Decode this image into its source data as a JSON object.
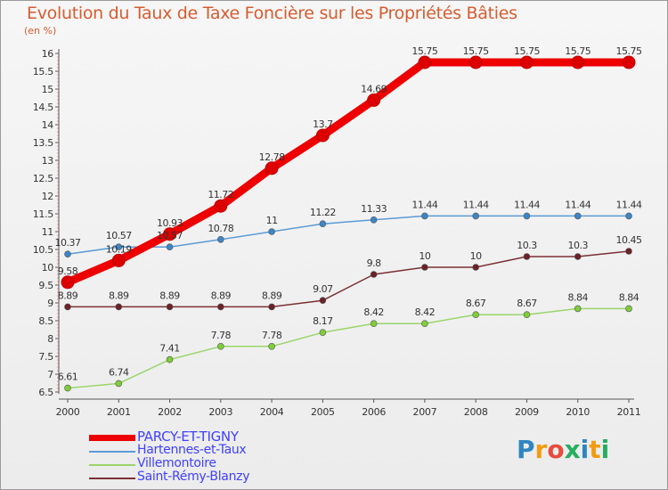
{
  "title": "Evolution du Taux de Taxe Foncière sur les Propriétés Bâties",
  "unit_label": "(en %)",
  "logo": {
    "letters": [
      "P",
      "r",
      "o",
      "x",
      "i",
      "t",
      "i"
    ],
    "colors": [
      "#2e86c1",
      "#f39c12",
      "#e74c3c",
      "#27ae60",
      "#2e86c1",
      "#f39c12",
      "#27ae60"
    ]
  },
  "chart_data": {
    "type": "line",
    "x": [
      "2000",
      "2001",
      "2002",
      "2003",
      "2004",
      "2005",
      "2006",
      "2007",
      "2008",
      "2009",
      "2010",
      "2011"
    ],
    "ylim": [
      6.5,
      16
    ],
    "yticks": [
      "6.5",
      "7",
      "7.5",
      "8",
      "8.5",
      "9",
      "9.5",
      "10",
      "10.5",
      "11",
      "11.5",
      "12",
      "12.5",
      "13",
      "13.5",
      "14",
      "14.5",
      "15",
      "15.5",
      "16"
    ],
    "ytick_values": [
      6.5,
      7,
      7.5,
      8,
      8.5,
      9,
      9.5,
      10,
      10.5,
      11,
      11.5,
      12,
      12.5,
      13,
      13.5,
      14,
      14.5,
      15,
      15.5,
      16
    ],
    "grid": false,
    "legend_placement": "bottom-left",
    "series": [
      {
        "name": "Hartennes-et-Taux",
        "color": "#5b9bd5",
        "point_color": "#3d85c6",
        "label_color": "#333333",
        "values": [
          10.37,
          10.57,
          10.57,
          10.78,
          11,
          11.22,
          11.33,
          11.44,
          11.44,
          11.44,
          11.44,
          11.44
        ],
        "labels": [
          "10.37",
          "10.57",
          "10.57",
          "10.78",
          "11",
          "11.22",
          "11.33",
          "11.44",
          "11.44",
          "11.44",
          "11.44",
          "11.44"
        ]
      },
      {
        "name": "Villemontoire",
        "color": "#9bd56a",
        "point_color": "#7fcc3a",
        "label_color": "#333333",
        "values": [
          6.61,
          6.74,
          7.41,
          7.78,
          7.78,
          8.17,
          8.42,
          8.42,
          8.67,
          8.67,
          8.84,
          8.84
        ],
        "labels": [
          "6.61",
          "6.74",
          "7.41",
          "7.78",
          "7.78",
          "8.17",
          "8.42",
          "8.42",
          "8.67",
          "8.67",
          "8.84",
          "8.84"
        ]
      },
      {
        "name": "Saint-Rémy-Blanzy",
        "color": "#7b3036",
        "point_color": "#6b2228",
        "label_color": "#333333",
        "values": [
          8.89,
          8.89,
          8.89,
          8.89,
          8.89,
          9.07,
          9.8,
          10,
          10,
          10.3,
          10.3,
          10.45
        ],
        "labels": [
          "8.89",
          "8.89",
          "8.89",
          "8.89",
          "8.89",
          "9.07",
          "9.8",
          "10",
          "10",
          "10.3",
          "10.3",
          "10.45"
        ]
      },
      {
        "name": "PARCY-ET-TIGNY",
        "color": "#ee0000",
        "point_color": "#dd0000",
        "label_color": "#333333",
        "values": [
          9.58,
          10.19,
          10.93,
          11.72,
          12.78,
          13.7,
          14.69,
          15.75,
          15.75,
          15.75,
          15.75,
          15.75
        ],
        "labels": [
          "9.58",
          "10.19",
          "10.93",
          "11.72",
          "12.78",
          "13.7",
          "14.69",
          "15.75",
          "15.75",
          "15.75",
          "15.75",
          "15.75"
        ]
      }
    ]
  },
  "legend": [
    {
      "name": "PARCY-ET-TIGNY",
      "color": "#ee0000",
      "text_color": "#4040ff"
    },
    {
      "name": "Hartennes-et-Taux",
      "color": "#5b9bd5",
      "text_color": "#4040ff"
    },
    {
      "name": "Villemontoire",
      "color": "#9bd56a",
      "text_color": "#4040ff"
    },
    {
      "name": "Saint-Rémy-Blanzy",
      "color": "#7b3036",
      "text_color": "#4040ff"
    }
  ]
}
